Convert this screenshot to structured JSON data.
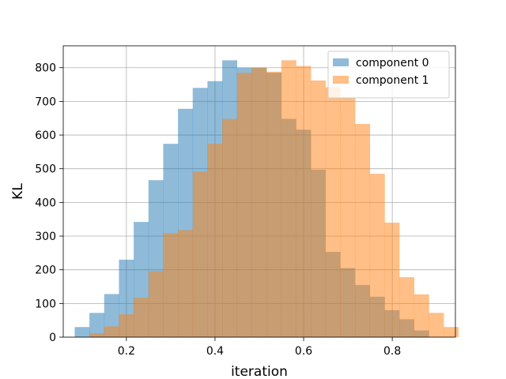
{
  "chart_data": {
    "type": "histogram",
    "title": "",
    "xlabel": "iteration",
    "ylabel": "KL",
    "xlim": [
      0.0575,
      0.9425
    ],
    "ylim": [
      0,
      865
    ],
    "xticks": [
      0.2,
      0.4,
      0.6,
      0.8
    ],
    "yticks": [
      0,
      100,
      200,
      300,
      400,
      500,
      600,
      700,
      800
    ],
    "grid": true,
    "legend_position": "top-right",
    "bin_width": 0.0333,
    "series": [
      {
        "name": "component 0",
        "color": "#1f77b4",
        "opacity": 0.5,
        "bin_start": 0.0833,
        "values": [
          30,
          72,
          128,
          230,
          342,
          466,
          574,
          678,
          740,
          760,
          822,
          800,
          800,
          785,
          648,
          616,
          497,
          253,
          205,
          155,
          120,
          80,
          53,
          20
        ]
      },
      {
        "name": "component 1",
        "color": "#ff7f0e",
        "opacity": 0.5,
        "bin_start": 0.1167,
        "values": [
          12,
          32,
          68,
          117,
          196,
          308,
          318,
          492,
          574,
          648,
          785,
          800,
          788,
          822,
          805,
          762,
          742,
          712,
          633,
          485,
          340,
          178,
          127,
          72,
          30
        ]
      }
    ]
  }
}
